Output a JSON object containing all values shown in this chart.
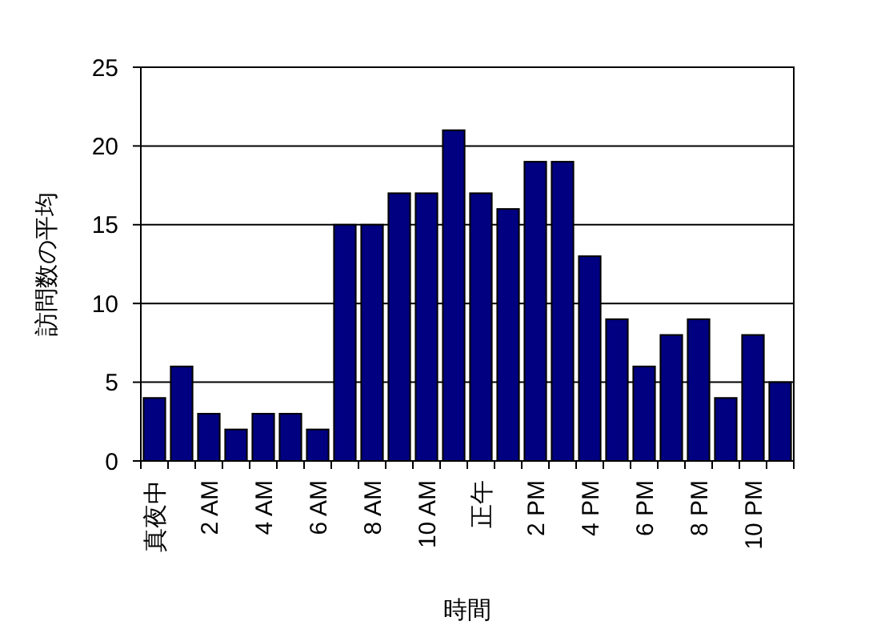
{
  "chart_data": {
    "type": "bar",
    "xlabel": "時間",
    "ylabel": "訪問数の平均",
    "categories": [
      "真夜中",
      null,
      "2 AM",
      null,
      "4 AM",
      null,
      "6 AM",
      null,
      "8 AM",
      null,
      "10 AM",
      null,
      "正午",
      null,
      "2 PM",
      null,
      "4 PM",
      null,
      "6 PM",
      null,
      "8 PM",
      null,
      "10 PM",
      null
    ],
    "values": [
      4,
      6,
      3,
      2,
      3,
      3,
      2,
      15,
      15,
      17,
      17,
      21,
      17,
      16,
      19,
      19,
      13,
      9,
      6,
      8,
      9,
      4,
      8,
      5
    ],
    "color": "#000080",
    "ylim": [
      0,
      25
    ],
    "yticks": [
      0,
      5,
      10,
      15,
      20,
      25
    ],
    "grid": "y"
  }
}
